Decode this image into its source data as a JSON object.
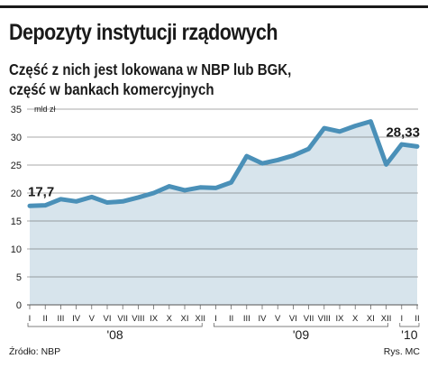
{
  "title": "Depozyty instytucji rządowych",
  "subtitle_lines": [
    "Część z nich jest lokowana w NBP lub BGK,",
    "część w bankach komercyjnych"
  ],
  "source": "Źródło: NBP",
  "credit": "Rys. MC",
  "colors": {
    "line": "#4a90b8",
    "area": "#d7e4ec",
    "grid": "#555555",
    "text": "#1a1a1a"
  },
  "chart_data": {
    "type": "area",
    "y_unit": "mld zł",
    "ylim": [
      0,
      35
    ],
    "yticks": [
      0,
      5,
      10,
      15,
      20,
      25,
      30,
      35
    ],
    "grid": true,
    "x_labels": [
      "I",
      "II",
      "III",
      "IV",
      "V",
      "VI",
      "VII",
      "VIII",
      "IX",
      "X",
      "XI",
      "XII",
      "I",
      "II",
      "III",
      "IV",
      "V",
      "VI",
      "VII",
      "VIII",
      "IX",
      "X",
      "XI",
      "XII",
      "I",
      "II"
    ],
    "years": [
      {
        "label": "'08",
        "start_index": 0,
        "end_index": 11
      },
      {
        "label": "'09",
        "start_index": 12,
        "end_index": 23
      },
      {
        "label": "'10",
        "start_index": 24,
        "end_index": 25
      }
    ],
    "values": [
      17.7,
      17.8,
      18.9,
      18.5,
      19.3,
      18.3,
      18.5,
      19.2,
      20.0,
      21.2,
      20.5,
      21.0,
      20.9,
      21.9,
      26.6,
      25.3,
      25.9,
      26.7,
      27.9,
      31.6,
      31.0,
      32.0,
      32.8,
      25.1,
      28.7,
      28.33
    ],
    "annotations": [
      {
        "text": "17,7",
        "index": 0
      },
      {
        "text": "28,33",
        "index": 25
      }
    ]
  }
}
